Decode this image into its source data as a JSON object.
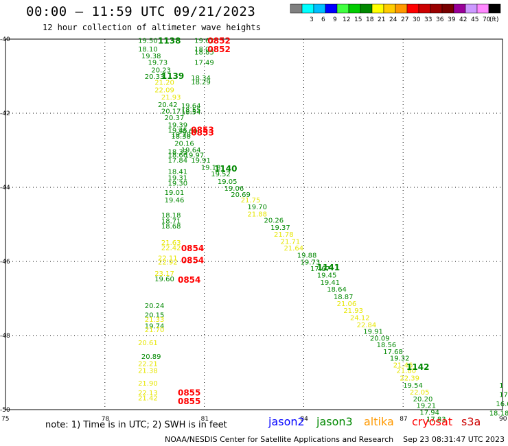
{
  "header": {
    "title": "00:00 – 11:59 UTC 09/21/2023",
    "subtitle": "12 hour collection of altimeter wave heights"
  },
  "legend": {
    "unit": "(ft)",
    "swatches": [
      {
        "label": "",
        "color": "#808080"
      },
      {
        "label": "3",
        "color": "#00ffff"
      },
      {
        "label": "6",
        "color": "#00bfff"
      },
      {
        "label": "9",
        "color": "#0000ff"
      },
      {
        "label": "12",
        "color": "#40ff40"
      },
      {
        "label": "15",
        "color": "#00cc00"
      },
      {
        "label": "18",
        "color": "#008800"
      },
      {
        "label": "21",
        "color": "#ffff00"
      },
      {
        "label": "24",
        "color": "#ffcc00"
      },
      {
        "label": "27",
        "color": "#ff9900"
      },
      {
        "label": "30",
        "color": "#ff0000"
      },
      {
        "label": "33",
        "color": "#cc0000"
      },
      {
        "label": "36",
        "color": "#990000"
      },
      {
        "label": "39",
        "color": "#770000"
      },
      {
        "label": "42",
        "color": "#990099"
      },
      {
        "label": "45",
        "color": "#cc99ff"
      },
      {
        "label": "70",
        "color": "#ff88ff"
      },
      {
        "label": "",
        "color": "#000000"
      }
    ]
  },
  "note": "note: 1) Time is in UTC; 2) SWH is in feet",
  "satellites": [
    {
      "name": "jason2",
      "color": "#0000ff"
    },
    {
      "name": "jason3",
      "color": "#008800"
    },
    {
      "name": "altika",
      "color": "#ff9900"
    },
    {
      "name": "cryosat",
      "color": "#ff0000"
    },
    {
      "name": "s3a",
      "color": "#cc0000"
    }
  ],
  "footer": "NOAA/NESDIS Center for Satellite Applications and Research    Sep 23 08:31:47 UTC 2023",
  "chart_data": {
    "type": "scatter",
    "x_ticks": [
      "75",
      "78",
      "81",
      "84",
      "87",
      "90"
    ],
    "y_ticks": [
      "-40",
      "-42",
      "-44",
      "-46",
      "-48",
      "-50"
    ],
    "xlim": [
      75,
      90
    ],
    "ylim": [
      -50,
      -40
    ],
    "grid": true,
    "colors": {
      "g": "#008800",
      "y": "#e6e600",
      "r": "#ff0000"
    },
    "wave_heights": [
      {
        "x": 79.0,
        "y": -40.05,
        "t": "19.50",
        "c": "g"
      },
      {
        "x": 80.7,
        "y": -40.05,
        "t": "19.62",
        "c": "g"
      },
      {
        "x": 79.0,
        "y": -40.28,
        "t": "18.10",
        "c": "g"
      },
      {
        "x": 80.7,
        "y": -40.28,
        "t": "18.01",
        "c": "g"
      },
      {
        "x": 79.1,
        "y": -40.46,
        "t": "19.38",
        "c": "g"
      },
      {
        "x": 80.7,
        "y": -40.36,
        "t": "18.85",
        "c": "g"
      },
      {
        "x": 79.3,
        "y": -40.64,
        "t": "19.73",
        "c": "g"
      },
      {
        "x": 80.7,
        "y": -40.64,
        "t": "17.49",
        "c": "g"
      },
      {
        "x": 79.4,
        "y": -40.84,
        "t": "20.23",
        "c": "g"
      },
      {
        "x": 79.2,
        "y": -41.02,
        "t": "20.33",
        "c": "g"
      },
      {
        "x": 80.6,
        "y": -41.06,
        "t": "18.34",
        "c": "g"
      },
      {
        "x": 80.6,
        "y": -41.17,
        "t": "18.29",
        "c": "g"
      },
      {
        "x": 79.5,
        "y": -41.18,
        "t": "21.20",
        "c": "y"
      },
      {
        "x": 79.5,
        "y": -41.38,
        "t": "22.09",
        "c": "y"
      },
      {
        "x": 79.7,
        "y": -41.57,
        "t": "21.93",
        "c": "y"
      },
      {
        "x": 79.6,
        "y": -41.78,
        "t": "20.42",
        "c": "g"
      },
      {
        "x": 80.3,
        "y": -41.81,
        "t": "19.64",
        "c": "g"
      },
      {
        "x": 79.7,
        "y": -41.95,
        "t": "20.17",
        "c": "g"
      },
      {
        "x": 80.3,
        "y": -41.92,
        "t": "18.55",
        "c": "g"
      },
      {
        "x": 80.3,
        "y": -41.97,
        "t": "18.54",
        "c": "g"
      },
      {
        "x": 79.8,
        "y": -42.13,
        "t": "20.37",
        "c": "g"
      },
      {
        "x": 79.9,
        "y": -42.32,
        "t": "19.39",
        "c": "g"
      },
      {
        "x": 79.9,
        "y": -42.47,
        "t": "19.45",
        "c": "g"
      },
      {
        "x": 80.2,
        "y": -42.49,
        "t": "18.60",
        "c": "g"
      },
      {
        "x": 80.0,
        "y": -42.63,
        "t": "18.38",
        "c": "g"
      },
      {
        "x": 80.0,
        "y": -42.58,
        "t": "19.28",
        "c": "g"
      },
      {
        "x": 80.1,
        "y": -42.82,
        "t": "20.16",
        "c": "g"
      },
      {
        "x": 80.3,
        "y": -43.0,
        "t": "19.64",
        "c": "g"
      },
      {
        "x": 79.9,
        "y": -43.05,
        "t": "18.33",
        "c": "g"
      },
      {
        "x": 79.9,
        "y": -43.14,
        "t": "18.66",
        "c": "g"
      },
      {
        "x": 80.4,
        "y": -43.14,
        "t": "19.97",
        "c": "g"
      },
      {
        "x": 79.9,
        "y": -43.28,
        "t": "17.84",
        "c": "g"
      },
      {
        "x": 80.6,
        "y": -43.28,
        "t": "19.91",
        "c": "g"
      },
      {
        "x": 80.9,
        "y": -43.47,
        "t": "19.18",
        "c": "g"
      },
      {
        "x": 79.9,
        "y": -43.58,
        "t": "18.41",
        "c": "g"
      },
      {
        "x": 81.2,
        "y": -43.65,
        "t": "19.52",
        "c": "g"
      },
      {
        "x": 79.9,
        "y": -43.75,
        "t": "19.31",
        "c": "g"
      },
      {
        "x": 79.9,
        "y": -43.9,
        "t": "19.30",
        "c": "g"
      },
      {
        "x": 81.4,
        "y": -43.85,
        "t": "19.05",
        "c": "g"
      },
      {
        "x": 81.6,
        "y": -44.04,
        "t": "19.06",
        "c": "g"
      },
      {
        "x": 79.8,
        "y": -44.15,
        "t": "19.01",
        "c": "g"
      },
      {
        "x": 81.8,
        "y": -44.2,
        "t": "20.69",
        "c": "g"
      },
      {
        "x": 79.8,
        "y": -44.35,
        "t": "19.46",
        "c": "g"
      },
      {
        "x": 82.1,
        "y": -44.35,
        "t": "21.75",
        "c": "y"
      },
      {
        "x": 82.3,
        "y": -44.54,
        "t": "19.70",
        "c": "g"
      },
      {
        "x": 82.3,
        "y": -44.73,
        "t": "21.88",
        "c": "y"
      },
      {
        "x": 79.7,
        "y": -44.76,
        "t": "18.18",
        "c": "g"
      },
      {
        "x": 82.8,
        "y": -44.9,
        "t": "20.26",
        "c": "g"
      },
      {
        "x": 79.7,
        "y": -44.92,
        "t": "18.71",
        "c": "g"
      },
      {
        "x": 79.7,
        "y": -45.06,
        "t": "18.68",
        "c": "g"
      },
      {
        "x": 83.0,
        "y": -45.09,
        "t": "19.37",
        "c": "g"
      },
      {
        "x": 83.1,
        "y": -45.28,
        "t": "21.78",
        "c": "y"
      },
      {
        "x": 79.7,
        "y": -45.5,
        "t": "21.63",
        "c": "y"
      },
      {
        "x": 83.3,
        "y": -45.47,
        "t": "21.71",
        "c": "y"
      },
      {
        "x": 79.7,
        "y": -45.64,
        "t": "22.42",
        "c": "y"
      },
      {
        "x": 83.4,
        "y": -45.65,
        "t": "21.64",
        "c": "y"
      },
      {
        "x": 83.8,
        "y": -45.84,
        "t": "19.88",
        "c": "g"
      },
      {
        "x": 79.6,
        "y": -45.92,
        "t": "22.11",
        "c": "y"
      },
      {
        "x": 83.9,
        "y": -46.03,
        "t": "19.73",
        "c": "g"
      },
      {
        "x": 79.6,
        "y": -46.03,
        "t": "22.92",
        "c": "y"
      },
      {
        "x": 84.2,
        "y": -46.2,
        "t": "17.67",
        "c": "g"
      },
      {
        "x": 79.5,
        "y": -46.33,
        "t": "23.17",
        "c": "y"
      },
      {
        "x": 84.4,
        "y": -46.38,
        "t": "19.45",
        "c": "g"
      },
      {
        "x": 79.5,
        "y": -46.48,
        "t": "19.60",
        "c": "g"
      },
      {
        "x": 84.5,
        "y": -46.57,
        "t": "19.41",
        "c": "g"
      },
      {
        "x": 84.7,
        "y": -46.76,
        "t": "18.64",
        "c": "g"
      },
      {
        "x": 84.9,
        "y": -46.96,
        "t": "18.87",
        "c": "g"
      },
      {
        "x": 85.0,
        "y": -47.15,
        "t": "21.06",
        "c": "y"
      },
      {
        "x": 79.2,
        "y": -47.2,
        "t": "20.24",
        "c": "g"
      },
      {
        "x": 85.2,
        "y": -47.33,
        "t": "21.93",
        "c": "y"
      },
      {
        "x": 79.2,
        "y": -47.45,
        "t": "20.15",
        "c": "g"
      },
      {
        "x": 85.4,
        "y": -47.53,
        "t": "24.12",
        "c": "y"
      },
      {
        "x": 79.2,
        "y": -47.57,
        "t": "21.33",
        "c": "y"
      },
      {
        "x": 85.6,
        "y": -47.72,
        "t": "22.84",
        "c": "y"
      },
      {
        "x": 79.2,
        "y": -47.75,
        "t": "19.74",
        "c": "g"
      },
      {
        "x": 79.2,
        "y": -47.85,
        "t": "21.70",
        "c": "y"
      },
      {
        "x": 85.8,
        "y": -47.9,
        "t": "19.91",
        "c": "g"
      },
      {
        "x": 86.0,
        "y": -48.08,
        "t": "20.09",
        "c": "g"
      },
      {
        "x": 79.0,
        "y": -48.2,
        "t": "20.61",
        "c": "y"
      },
      {
        "x": 86.2,
        "y": -48.26,
        "t": "18.56",
        "c": "g"
      },
      {
        "x": 86.4,
        "y": -48.44,
        "t": "17.68",
        "c": "g"
      },
      {
        "x": 79.1,
        "y": -48.57,
        "t": "20.89",
        "c": "g"
      },
      {
        "x": 86.6,
        "y": -48.62,
        "t": "19.32",
        "c": "g"
      },
      {
        "x": 79.0,
        "y": -48.77,
        "t": "22.21",
        "c": "y"
      },
      {
        "x": 86.7,
        "y": -48.81,
        "t": "21.46",
        "c": "y"
      },
      {
        "x": 79.0,
        "y": -48.95,
        "t": "21.38",
        "c": "y"
      },
      {
        "x": 86.8,
        "y": -48.95,
        "t": "21.80",
        "c": "y"
      },
      {
        "x": 86.9,
        "y": -49.16,
        "t": "22.39",
        "c": "y"
      },
      {
        "x": 79.0,
        "y": -49.3,
        "t": "21.90",
        "c": "y"
      },
      {
        "x": 87.0,
        "y": -49.35,
        "t": "19.54",
        "c": "g"
      },
      {
        "x": 79.0,
        "y": -49.56,
        "t": "22.13",
        "c": "y"
      },
      {
        "x": 87.2,
        "y": -49.54,
        "t": "22.05",
        "c": "y"
      },
      {
        "x": 79.0,
        "y": -49.69,
        "t": "21.42",
        "c": "y"
      },
      {
        "x": 87.3,
        "y": -49.72,
        "t": "20.20",
        "c": "g"
      },
      {
        "x": 87.4,
        "y": -49.9,
        "t": "19.21",
        "c": "g"
      },
      {
        "x": 87.5,
        "y": -50.08,
        "t": "17.94",
        "c": "g"
      },
      {
        "x": 87.7,
        "y": -50.27,
        "t": "17.83",
        "c": "g"
      },
      {
        "x": 89.9,
        "y": -49.35,
        "t": "1",
        "c": "g"
      },
      {
        "x": 89.9,
        "y": -49.6,
        "t": "17",
        "c": "g"
      },
      {
        "x": 89.8,
        "y": -49.85,
        "t": "16.0",
        "c": "g"
      },
      {
        "x": 89.6,
        "y": -50.1,
        "t": "18.18",
        "c": "g"
      }
    ],
    "pass_labels": [
      {
        "x": 79.6,
        "y": -40.05,
        "t": "1138",
        "c": "g"
      },
      {
        "x": 79.7,
        "y": -41.0,
        "t": "1139",
        "c": "g"
      },
      {
        "x": 81.3,
        "y": -43.5,
        "t": "1140",
        "c": "g"
      },
      {
        "x": 84.4,
        "y": -46.17,
        "t": "1141",
        "c": "g"
      },
      {
        "x": 87.1,
        "y": -48.85,
        "t": "1142",
        "c": "g"
      },
      {
        "x": 81.1,
        "y": -40.05,
        "t": "0852",
        "c": "r"
      },
      {
        "x": 81.1,
        "y": -40.28,
        "t": "0852",
        "c": "r"
      },
      {
        "x": 80.6,
        "y": -42.45,
        "t": "0853",
        "c": "r"
      },
      {
        "x": 80.6,
        "y": -42.53,
        "t": "0853",
        "c": "r"
      },
      {
        "x": 80.3,
        "y": -45.65,
        "t": "0854",
        "c": "r"
      },
      {
        "x": 80.3,
        "y": -45.97,
        "t": "0854",
        "c": "r"
      },
      {
        "x": 80.2,
        "y": -46.5,
        "t": "0854",
        "c": "r"
      },
      {
        "x": 80.2,
        "y": -49.55,
        "t": "0855",
        "c": "r"
      },
      {
        "x": 80.2,
        "y": -49.78,
        "t": "0855",
        "c": "r"
      }
    ]
  }
}
